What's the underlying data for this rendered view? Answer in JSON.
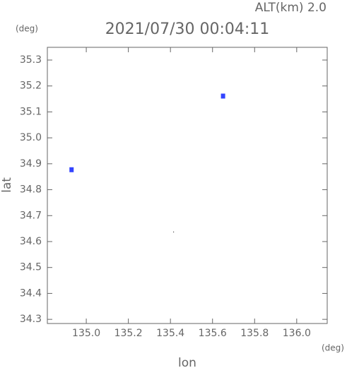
{
  "chart_data": {
    "type": "scatter",
    "title": "2021/07/30 00:04:11",
    "altitude_label": "ALT(km) 2.0",
    "y_unit": "(deg)",
    "x_unit": "(deg)",
    "xlabel": "lon",
    "ylabel": "lat",
    "xlim": [
      134.815,
      136.145
    ],
    "ylim": [
      34.284,
      35.349
    ],
    "xticks": [
      {
        "value": 135.0,
        "label": "135.0"
      },
      135.2,
      135.4,
      135.6,
      135.8,
      {
        "value": 136.0,
        "label": "136.0"
      }
    ],
    "yticks": [
      34.3,
      34.4,
      34.5,
      34.6,
      34.7,
      34.8,
      34.9,
      {
        "value": 35.0,
        "label": "35.0"
      },
      35.1,
      35.2,
      35.3
    ],
    "points": {
      "x": [
        134.93,
        135.65,
        135.415
      ],
      "y": [
        34.877,
        35.161,
        34.637
      ],
      "colors": [
        "#3344ff",
        "#3344ff",
        "#000000"
      ]
    }
  }
}
